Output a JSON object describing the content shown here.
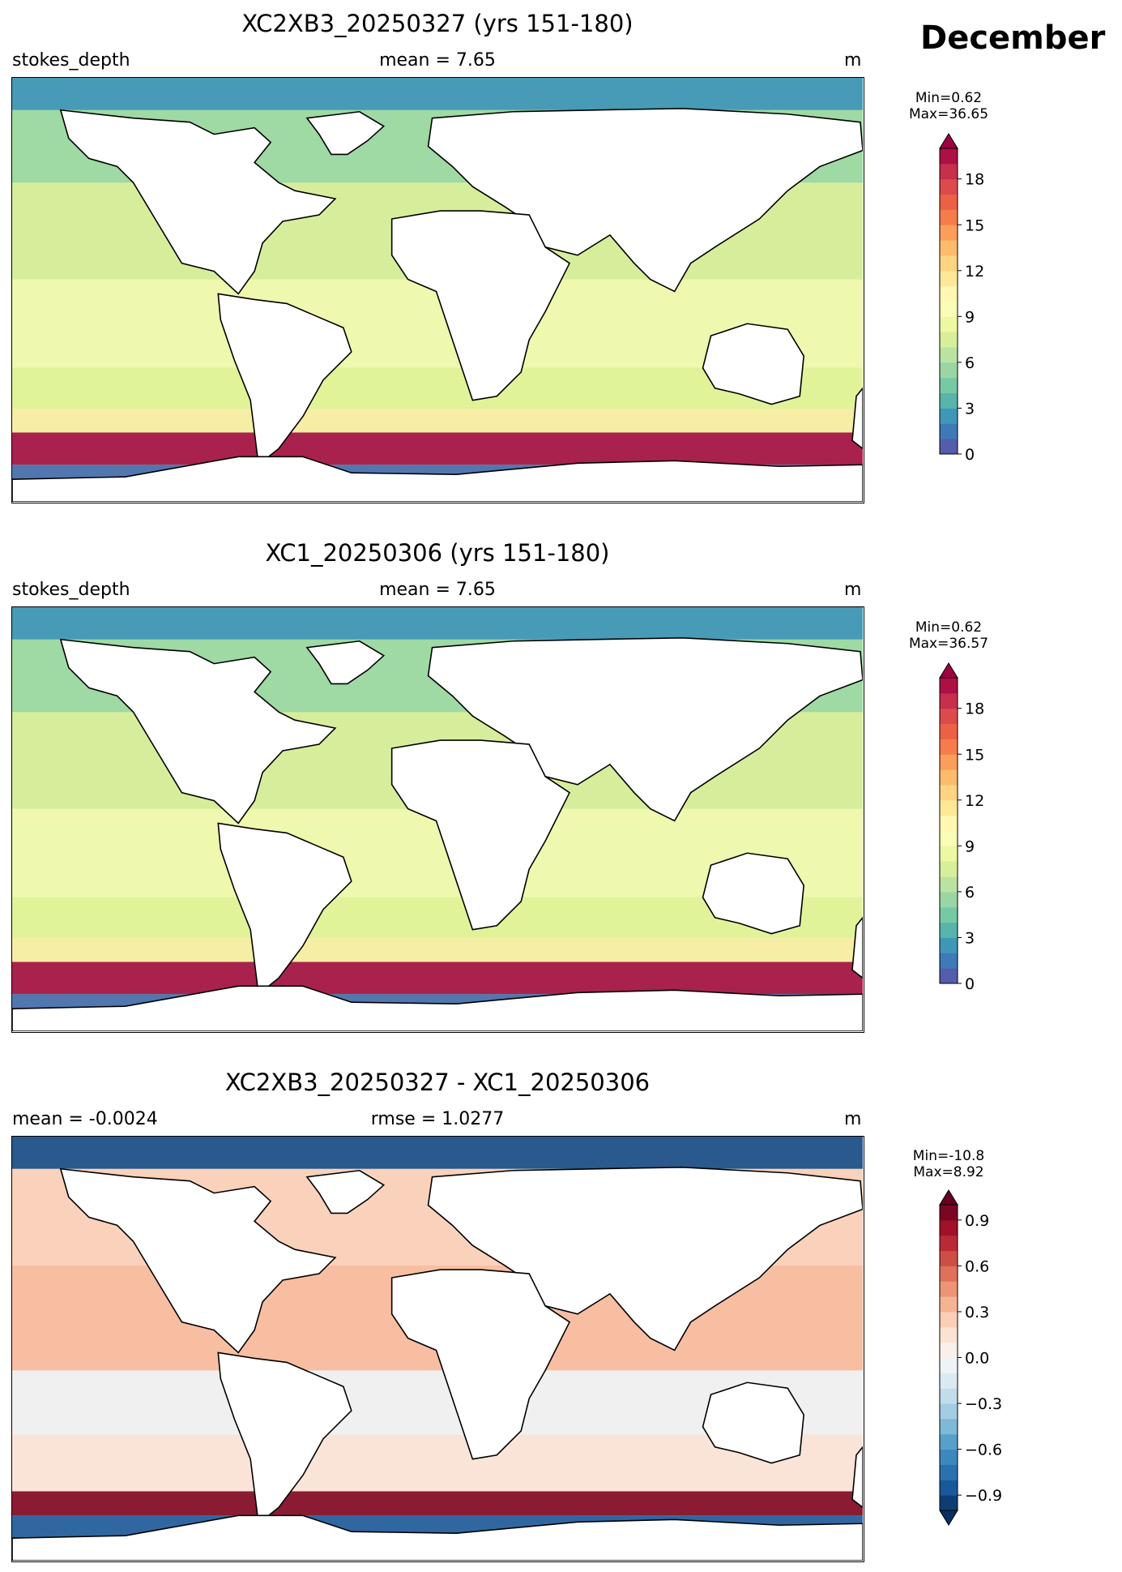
{
  "month": "December",
  "panels": [
    {
      "title": "XC2XB3_20250327 (yrs 151-180)",
      "left": "stokes_depth",
      "center": "mean = 7.65",
      "right": "m",
      "min": "Min=0.62",
      "max": "Max=36.65",
      "colormap": "Spectral_r",
      "ticks": [
        "0",
        "3",
        "6",
        "9",
        "12",
        "15",
        "18"
      ],
      "tick_values": [
        0,
        3,
        6,
        9,
        12,
        15,
        18
      ],
      "range": [
        0,
        20
      ],
      "extend": "max",
      "ocean_color": "#a9dba3"
    },
    {
      "title": "XC1_20250306 (yrs 151-180)",
      "left": "stokes_depth",
      "center": "mean = 7.65",
      "right": "m",
      "min": "Min=0.62",
      "max": "Max=36.57",
      "colormap": "Spectral_r",
      "ticks": [
        "0",
        "3",
        "6",
        "9",
        "12",
        "15",
        "18"
      ],
      "tick_values": [
        0,
        3,
        6,
        9,
        12,
        15,
        18
      ],
      "range": [
        0,
        20
      ],
      "extend": "max",
      "ocean_color": "#a9dba3"
    },
    {
      "title": "XC2XB3_20250327 - XC1_20250306",
      "left": "mean = -0.0024",
      "center": "rmse = 1.0277",
      "right": "m",
      "min": "Min=-10.8",
      "max": "Max=8.92",
      "colormap": "RdBu_r",
      "ticks": [
        "−0.9",
        "−0.6",
        "−0.3",
        "0.0",
        "0.3",
        "0.6",
        "0.9"
      ],
      "tick_values": [
        -0.9,
        -0.6,
        -0.3,
        0.0,
        0.3,
        0.6,
        0.9
      ],
      "range": [
        -1.0,
        1.0
      ],
      "extend": "both",
      "ocean_color": "#f0d0c0"
    }
  ]
}
